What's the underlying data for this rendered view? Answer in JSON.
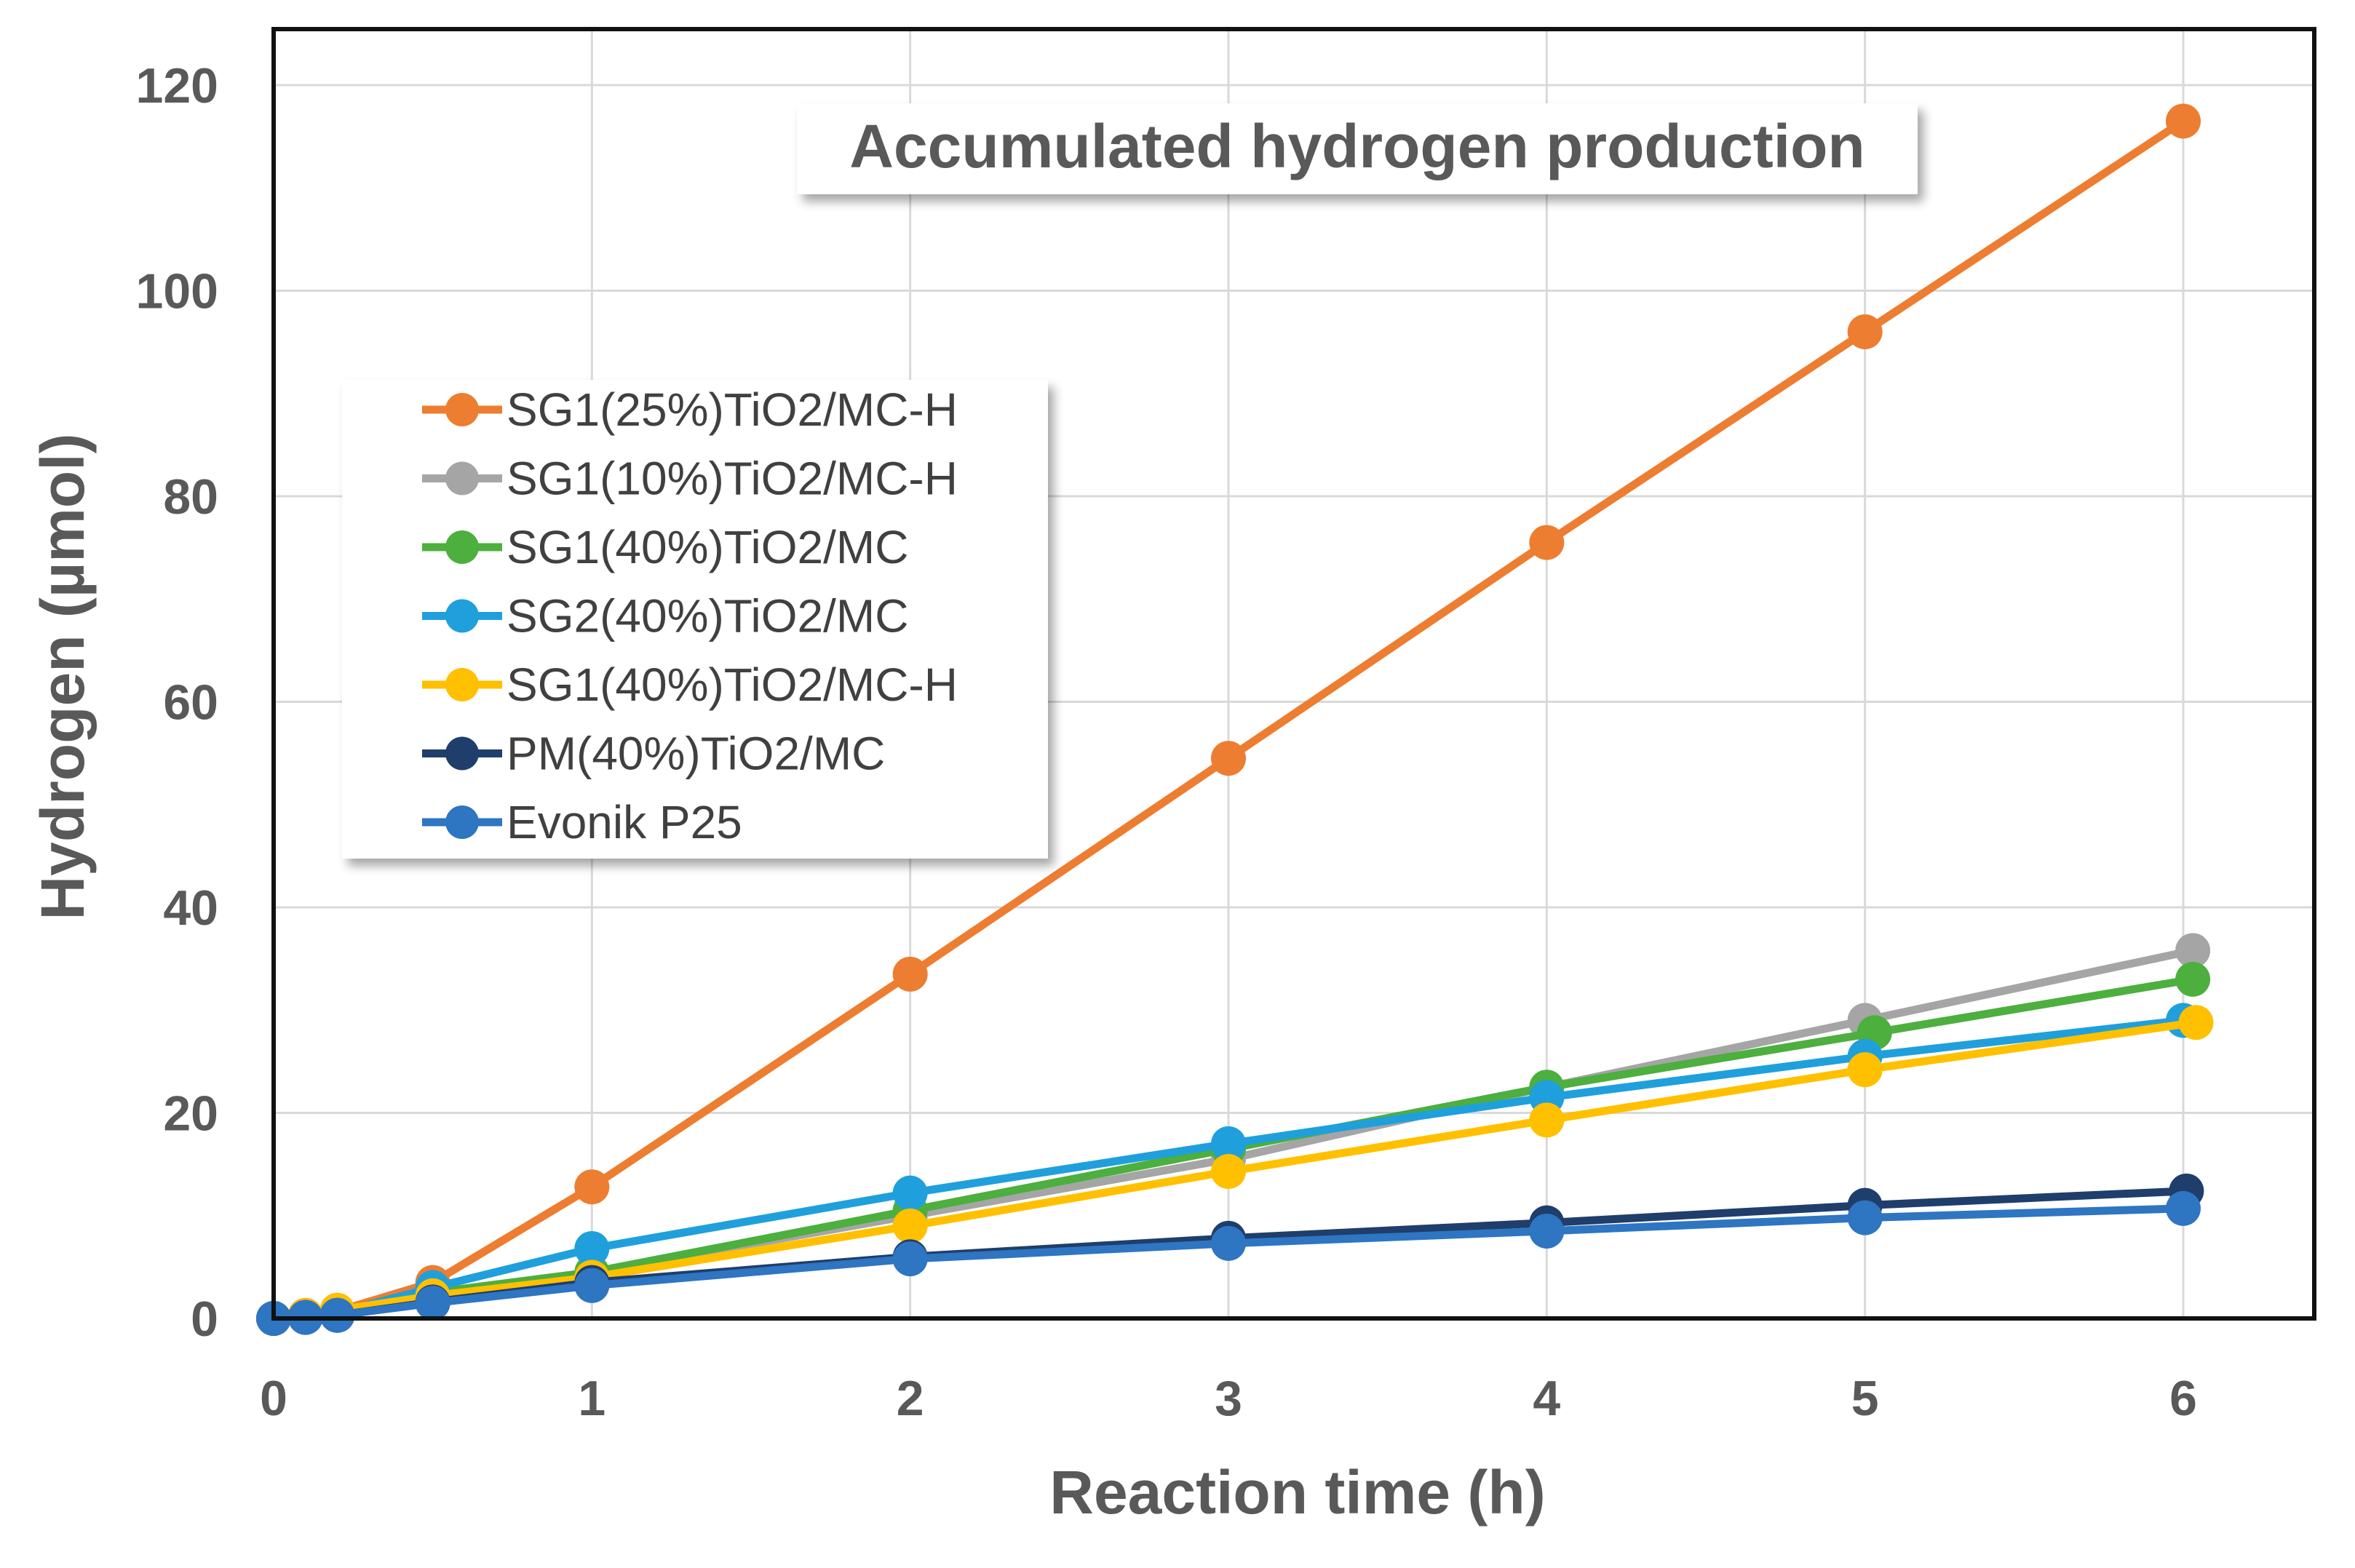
{
  "chart_data": {
    "type": "line",
    "title": "Accumulated hydrogen production",
    "xlabel": "Reaction time (h)",
    "ylabel": "Hydrogen (µmol)",
    "xlim": [
      0,
      6.4
    ],
    "ylim": [
      0,
      125
    ],
    "xticks": [
      0,
      1,
      2,
      3,
      4,
      5,
      6
    ],
    "yticks": [
      0,
      20,
      40,
      60,
      80,
      100,
      120
    ],
    "grid": true,
    "legend_position": "center-left",
    "series": [
      {
        "name": "SG1(25%)TiO2/MC-H",
        "color": "#ED7D31",
        "x": [
          0,
          0.1,
          0.2,
          0.5,
          1,
          2,
          3,
          4,
          5,
          6
        ],
        "y": [
          0,
          0.3,
          0.7,
          3.5,
          12.8,
          33.5,
          54.5,
          75.5,
          96,
          116.5
        ]
      },
      {
        "name": "SG1(10%)TiO2/MC-H",
        "color": "#A5A5A5",
        "x": [
          0,
          0.1,
          0.2,
          0.5,
          1,
          2,
          3,
          4,
          5,
          6.03
        ],
        "y": [
          0,
          0.2,
          0.5,
          2.5,
          4.5,
          10,
          15.5,
          22.5,
          29,
          35.8
        ]
      },
      {
        "name": "SG1(40%)TiO2/MC",
        "color": "#4CAF3E",
        "x": [
          0,
          0.1,
          0.2,
          0.5,
          1,
          2,
          3,
          4,
          5.03,
          6.03
        ],
        "y": [
          0,
          0.2,
          0.6,
          2.5,
          4.5,
          10.5,
          16.5,
          22.5,
          27.8,
          33
        ]
      },
      {
        "name": "SG2(40%)TiO2/MC",
        "color": "#1FA0DC",
        "x": [
          0,
          0.1,
          0.2,
          0.5,
          1,
          2,
          3,
          4,
          5,
          6
        ],
        "y": [
          0,
          0.2,
          0.5,
          3,
          6.8,
          12.2,
          17,
          21.5,
          25.5,
          29
        ]
      },
      {
        "name": "SG1(40%)TiO2/MC-H",
        "color": "#FFC000",
        "x": [
          0,
          0.1,
          0.2,
          0.5,
          1,
          2,
          3,
          4,
          5,
          6.04
        ],
        "y": [
          0,
          0.3,
          0.8,
          2.2,
          4,
          9,
          14.3,
          19.3,
          24.2,
          28.8
        ]
      },
      {
        "name": "PM(40%)TiO2/MC",
        "color": "#1F3E6B",
        "x": [
          0,
          0.1,
          0.2,
          0.5,
          1,
          2,
          3,
          4,
          5,
          6.01
        ],
        "y": [
          0,
          0.1,
          0.3,
          1.6,
          3.5,
          6,
          7.8,
          9.3,
          11,
          12.4
        ]
      },
      {
        "name": "Evonik P25",
        "color": "#2E75C2",
        "x": [
          0,
          0.1,
          0.2,
          0.5,
          1,
          2,
          3,
          4,
          5,
          6
        ],
        "y": [
          0,
          0.1,
          0.3,
          1.5,
          3.2,
          5.8,
          7.3,
          8.5,
          9.8,
          10.7
        ]
      }
    ]
  }
}
